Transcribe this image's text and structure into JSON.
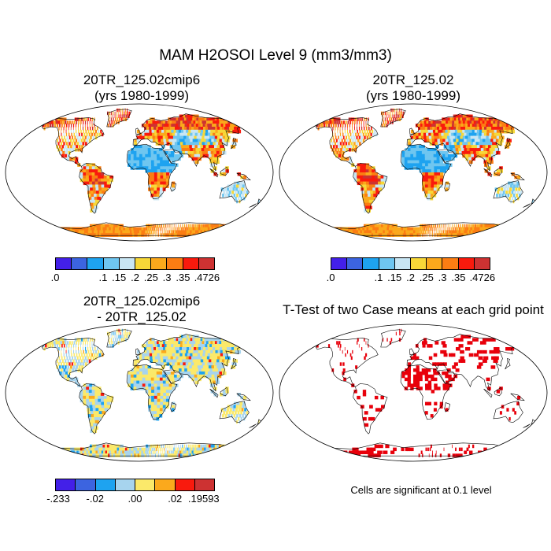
{
  "title": "MAM H2OSOI Level 9 (mm3/mm3)",
  "panels": [
    {
      "title_line1": "20TR_125.02cmip6",
      "title_line2": "(yrs 1980-1999)"
    },
    {
      "title_line1": "20TR_125.02",
      "title_line2": "(yrs 1980-1999)"
    },
    {
      "title_line1": "20TR_125.02cmip6",
      "title_line2": "- 20TR_125.02"
    },
    {
      "title_line1": "T-Test of two Case means at each grid point"
    }
  ],
  "note": "Cells are significant at 0.1 level",
  "colorbars": {
    "main": {
      "colors": [
        "#4320e8",
        "#3c64e0",
        "#1ea3f0",
        "#6fc6f0",
        "#c8e6f4",
        "#f7d838",
        "#fba91c",
        "#fb7d13",
        "#f91a0d",
        "#cd3232"
      ],
      "labels": [
        ".0",
        ".1",
        ".15",
        ".2",
        ".25",
        ".3",
        ".35",
        ".4726"
      ]
    },
    "diff": {
      "colors": [
        "#4320e8",
        "#3c64e0",
        "#1ea3f0",
        "#a7d4ee",
        "#fbe96a",
        "#fba91c",
        "#f91a0d",
        "#cd3232"
      ],
      "labels": [
        "-.233",
        "-.02",
        ".00",
        ".02",
        ".19593"
      ]
    }
  }
}
